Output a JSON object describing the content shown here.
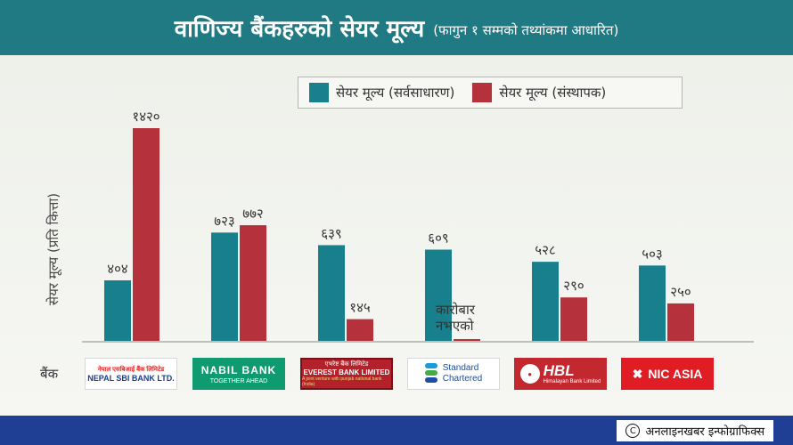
{
  "header": {
    "title": "वाणिज्य बैंकहरुको सेयर मूल्य",
    "subtitle": "(फागुन १ सम्मको तथ्यांकमा आधारित)"
  },
  "footer": {
    "credit": "अनलाइनखबर इन्फोग्राफिक्स",
    "copyright_symbol": "C"
  },
  "bank_axis_label": "बैंक",
  "logos": {
    "sbi": {
      "line1": "नेपाल एसबिआई बैंक लिमिटेड",
      "line2": "NEPAL SBI BANK LTD."
    },
    "nabil": {
      "line1": "NABIL BANK",
      "line2": "TOGETHER AHEAD"
    },
    "everest": {
      "line1": "एभरेष्ट बैंक लिमिटेड",
      "line2": "EVEREST BANK LIMITED",
      "line3": "A joint venture with punjab national bank (India)"
    },
    "sc": {
      "line1": "Standard",
      "line2": "Chartered"
    },
    "hbl": {
      "line1": "HBL",
      "line2": "Himalayan Bank Limited"
    },
    "nic": {
      "line1": "NIC ASIA"
    }
  },
  "colors": {
    "public": "#17808c",
    "promoter": "#b5313b"
  },
  "chart_data": {
    "type": "bar",
    "title": "वाणिज्य बैंकहरुको सेयर मूल्य",
    "ylabel": "सेयर मूल्य (प्रति कित्ता)",
    "xlabel": "बैंक",
    "categories": [
      "NEPAL SBI BANK LTD.",
      "NABIL BANK",
      "EVEREST BANK LIMITED",
      "Standard Chartered",
      "HBL",
      "NIC ASIA"
    ],
    "series": [
      {
        "name": "सेयर मूल्य (सर्वसाधारण)",
        "values": [
          404,
          723,
          639,
          609,
          528,
          503
        ],
        "labels": [
          "४०४",
          "७२३",
          "६३९",
          "६०९",
          "५२८",
          "५०३"
        ]
      },
      {
        "name": "सेयर मूल्य (संस्थापक)",
        "values": [
          1420,
          772,
          145,
          null,
          290,
          250
        ],
        "labels": [
          "१४२०",
          "७७२",
          "१४५",
          "कारोबार नभएको",
          "२९०",
          "२५०"
        ]
      }
    ],
    "ylim": [
      0,
      1420
    ],
    "grid": false,
    "legend_position": "top-right"
  }
}
